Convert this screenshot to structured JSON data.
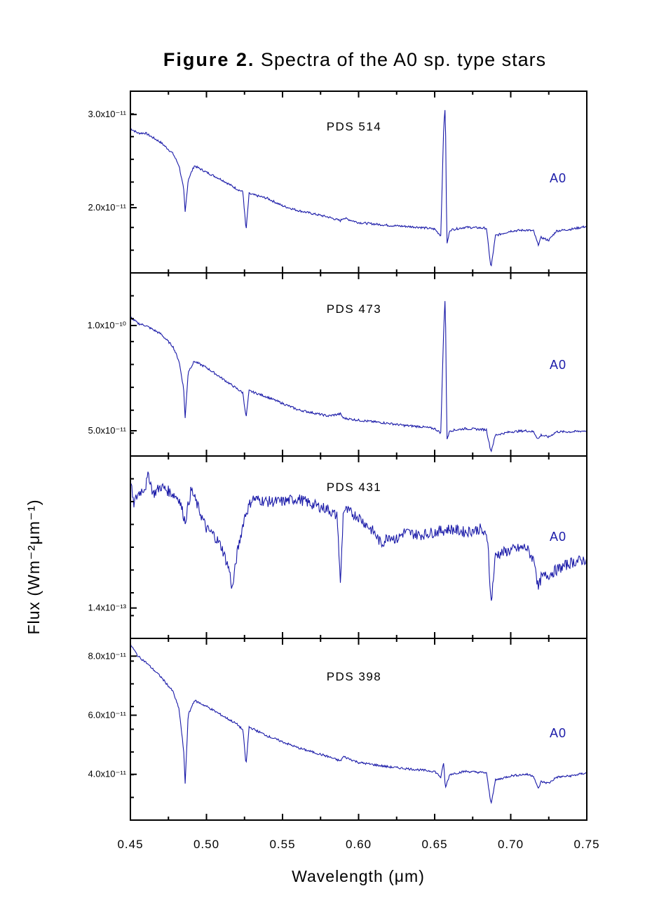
{
  "figure": {
    "title_bold": "Figure 2.",
    "title_rest": " Spectra of the A0 sp. type stars"
  },
  "colors": {
    "spectrum": "#1a1aa8",
    "axes": "#000000"
  },
  "chart_data": {
    "type": "line",
    "xlabel": "Wavelength (μm)",
    "ylabel": "Flux (Wm⁻²μm⁻¹)",
    "xlim": [
      0.45,
      0.75
    ],
    "x_ticks": [
      "0.45",
      "0.50",
      "0.55",
      "0.60",
      "0.65",
      "0.70",
      "0.75"
    ],
    "shared_x": true,
    "grid": false,
    "panels": [
      {
        "star": "PDS 514",
        "sp_type": "A0",
        "ylim": [
          1.3e-11,
          3.25e-11
        ],
        "y_ticks": [
          {
            "value": 3e-11,
            "label": "3.0x10⁻¹¹"
          },
          {
            "value": 2e-11,
            "label": "2.0x10⁻¹¹"
          }
        ],
        "x": [
          0.45,
          0.455,
          0.46,
          0.47,
          0.478,
          0.482,
          0.485,
          0.486,
          0.488,
          0.492,
          0.5,
          0.51,
          0.52,
          0.524,
          0.526,
          0.528,
          0.54,
          0.55,
          0.56,
          0.58,
          0.588,
          0.59,
          0.6,
          0.62,
          0.63,
          0.64,
          0.65,
          0.654,
          0.656,
          0.657,
          0.658,
          0.66,
          0.67,
          0.684,
          0.687,
          0.69,
          0.7,
          0.71,
          0.715,
          0.718,
          0.72,
          0.725,
          0.73,
          0.74,
          0.75
        ],
        "flux": [
          2.85e-11,
          2.8e-11,
          2.8e-11,
          2.7e-11,
          2.58e-11,
          2.45e-11,
          2.2e-11,
          1.95e-11,
          2.3e-11,
          2.45e-11,
          2.38e-11,
          2.3e-11,
          2.2e-11,
          2.17e-11,
          1.75e-11,
          2.15e-11,
          2.1e-11,
          2.02e-11,
          1.97e-11,
          1.9e-11,
          1.86e-11,
          1.89e-11,
          1.84e-11,
          1.81e-11,
          1.8e-11,
          1.79e-11,
          1.77e-11,
          1.7e-11,
          2.9e-11,
          3.1e-11,
          1.6e-11,
          1.76e-11,
          1.79e-11,
          1.78e-11,
          1.35e-11,
          1.7e-11,
          1.75e-11,
          1.76e-11,
          1.75e-11,
          1.6e-11,
          1.68e-11,
          1.65e-11,
          1.75e-11,
          1.77e-11,
          1.8e-11
        ]
      },
      {
        "star": "PDS 473",
        "sp_type": "A0",
        "ylim": [
          3.8e-11,
          1.25e-10
        ],
        "y_ticks": [
          {
            "value": 1e-10,
            "label": "1.0x10⁻¹⁰"
          },
          {
            "value": 5e-11,
            "label": "5.0x10⁻¹¹"
          }
        ],
        "x": [
          0.45,
          0.455,
          0.46,
          0.47,
          0.478,
          0.482,
          0.485,
          0.486,
          0.488,
          0.492,
          0.5,
          0.51,
          0.52,
          0.524,
          0.526,
          0.528,
          0.54,
          0.55,
          0.56,
          0.58,
          0.588,
          0.59,
          0.6,
          0.62,
          0.63,
          0.64,
          0.65,
          0.654,
          0.656,
          0.657,
          0.658,
          0.66,
          0.67,
          0.684,
          0.687,
          0.69,
          0.7,
          0.71,
          0.715,
          0.718,
          0.72,
          0.725,
          0.73,
          0.74,
          0.75
        ],
        "flux": [
          1.04e-10,
          1.01e-10,
          1e-10,
          9.6e-11,
          9e-11,
          8.3e-11,
          7e-11,
          5.6e-11,
          7.8e-11,
          8.3e-11,
          8e-11,
          7.5e-11,
          7e-11,
          6.8e-11,
          5.6e-11,
          6.9e-11,
          6.6e-11,
          6.3e-11,
          6e-11,
          5.7e-11,
          5.8e-11,
          5.6e-11,
          5.5e-11,
          5.35e-11,
          5.25e-11,
          5.2e-11,
          5.1e-11,
          4.9e-11,
          1e-10,
          1.15e-10,
          4.6e-11,
          5e-11,
          5.1e-11,
          5.05e-11,
          4e-11,
          4.8e-11,
          4.95e-11,
          5e-11,
          4.95e-11,
          4.6e-11,
          4.8e-11,
          4.7e-11,
          4.95e-11,
          4.95e-11,
          5e-11
        ]
      },
      {
        "star": "PDS 431",
        "sp_type": "A0",
        "ylim": [
          1.2e-13,
          2.4e-13
        ],
        "y_ticks": [
          {
            "value": 1.4e-13,
            "label": "1.4x10⁻¹³"
          }
        ],
        "x": [
          0.45,
          0.452,
          0.455,
          0.46,
          0.462,
          0.465,
          0.47,
          0.478,
          0.482,
          0.486,
          0.49,
          0.495,
          0.5,
          0.505,
          0.51,
          0.515,
          0.517,
          0.52,
          0.525,
          0.53,
          0.54,
          0.55,
          0.56,
          0.57,
          0.58,
          0.586,
          0.588,
          0.59,
          0.6,
          0.61,
          0.615,
          0.62,
          0.625,
          0.63,
          0.64,
          0.65,
          0.66,
          0.67,
          0.68,
          0.685,
          0.687,
          0.69,
          0.7,
          0.71,
          0.716,
          0.718,
          0.72,
          0.725,
          0.73,
          0.74,
          0.75
        ],
        "flux": [
          2.25e-13,
          2.08e-13,
          2.15e-13,
          2.2e-13,
          2.28e-13,
          2.15e-13,
          2.2e-13,
          2.15e-13,
          2.12e-13,
          1.97e-13,
          2.18e-13,
          2.05e-13,
          1.92e-13,
          1.88e-13,
          1.8e-13,
          1.65e-13,
          1.52e-13,
          1.75e-13,
          2e-13,
          2.12e-13,
          2.1e-13,
          2.1e-13,
          2.12e-13,
          2.08e-13,
          2.05e-13,
          2e-13,
          1.55e-13,
          2.05e-13,
          2e-13,
          1.9e-13,
          1.82e-13,
          1.88e-13,
          1.85e-13,
          1.9e-13,
          1.88e-13,
          1.9e-13,
          1.92e-13,
          1.9e-13,
          1.92e-13,
          1.85e-13,
          1.42e-13,
          1.75e-13,
          1.78e-13,
          1.8e-13,
          1.7e-13,
          1.52e-13,
          1.6e-13,
          1.62e-13,
          1.65e-13,
          1.7e-13,
          1.72e-13
        ]
      },
      {
        "star": "PDS 398",
        "sp_type": "A0",
        "ylim": [
          2.45e-11,
          8.6e-11
        ],
        "y_ticks": [
          {
            "value": 8e-11,
            "label": "8.0x10⁻¹¹"
          },
          {
            "value": 6e-11,
            "label": "6.0x10⁻¹¹"
          },
          {
            "value": 4e-11,
            "label": "4.0x10⁻¹¹"
          }
        ],
        "x": [
          0.45,
          0.455,
          0.46,
          0.47,
          0.478,
          0.482,
          0.485,
          0.486,
          0.488,
          0.492,
          0.5,
          0.51,
          0.52,
          0.524,
          0.526,
          0.528,
          0.54,
          0.55,
          0.56,
          0.58,
          0.588,
          0.59,
          0.6,
          0.62,
          0.63,
          0.64,
          0.65,
          0.654,
          0.656,
          0.657,
          0.658,
          0.66,
          0.67,
          0.684,
          0.687,
          0.69,
          0.7,
          0.71,
          0.715,
          0.718,
          0.72,
          0.725,
          0.73,
          0.74,
          0.75
        ],
        "flux": [
          8.4e-11,
          8e-11,
          7.8e-11,
          7.3e-11,
          6.8e-11,
          6.2e-11,
          4.8e-11,
          3.7e-11,
          6e-11,
          6.5e-11,
          6.3e-11,
          6e-11,
          5.7e-11,
          5.5e-11,
          4.3e-11,
          5.6e-11,
          5.3e-11,
          5.1e-11,
          4.9e-11,
          4.6e-11,
          4.45e-11,
          4.6e-11,
          4.4e-11,
          4.25e-11,
          4.2e-11,
          4.15e-11,
          4.1e-11,
          3.9e-11,
          4.4e-11,
          3.5e-11,
          3.7e-11,
          4e-11,
          4.1e-11,
          4.05e-11,
          3e-11,
          3.8e-11,
          3.95e-11,
          4e-11,
          3.95e-11,
          3.5e-11,
          3.75e-11,
          3.7e-11,
          3.9e-11,
          3.95e-11,
          4.05e-11
        ]
      }
    ]
  }
}
